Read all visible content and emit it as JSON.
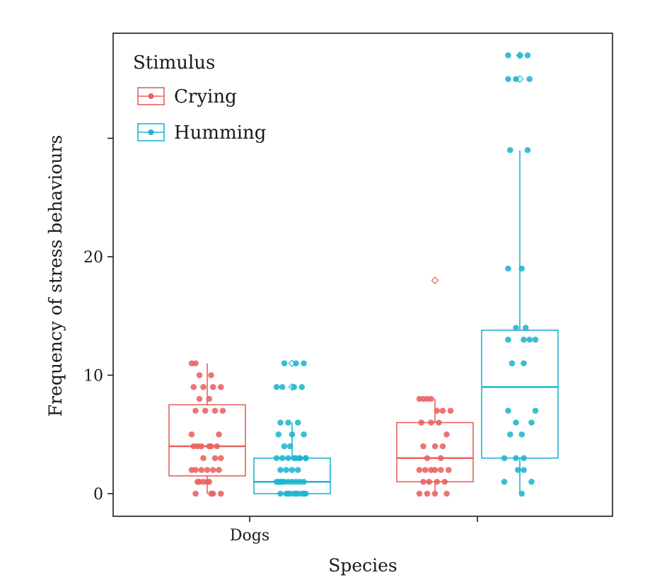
{
  "chart_data": {
    "type": "box",
    "xlabel": "Species",
    "ylabel": "Frequency of stress behaviours",
    "legend_title": "Stimulus",
    "legend_position": "top-left",
    "grid": false,
    "ylim": [
      -2,
      39
    ],
    "y_ticks": [
      0,
      10,
      20,
      30
    ],
    "y_tick_labels": [
      "0",
      "10",
      "20",
      ""
    ],
    "categories": [
      "Dogs",
      ""
    ],
    "series": [
      {
        "name": "Crying",
        "color": "#E8625E",
        "boxes": [
          {
            "category": "Dogs",
            "q1": 1.5,
            "median": 4,
            "q3": 7.5,
            "whisker_low": 0,
            "whisker_high": 11,
            "outliers": []
          },
          {
            "category": "",
            "q1": 1,
            "median": 3,
            "q3": 6,
            "whisker_low": 0,
            "whisker_high": 8,
            "outliers": [
              18
            ]
          }
        ],
        "points": [
          {
            "category": "Dogs",
            "jitter": [
              -0.4,
              -0.3,
              -0.2,
              0.1,
              0.35,
              -0.1,
              0.15,
              -0.35,
              -0.2,
              0.05,
              0.2,
              0.4,
              -0.3,
              -0.05,
              0.3,
              -0.4,
              -0.15,
              0.1,
              0.25,
              -0.25,
              0.05,
              -0.35,
              -0.1,
              0.2,
              0.35,
              -0.3,
              -0.15,
              0.0,
              0.15,
              0.3,
              -0.4,
              -0.25,
              -0.1,
              0.05,
              -0.2,
              0.0,
              0.15,
              0.35,
              -0.3,
              0.1
            ],
            "values": [
              11,
              11,
              10,
              10,
              9,
              9,
              9,
              9,
              8,
              8,
              7,
              7,
              7,
              7,
              5,
              5,
              4,
              4,
              4,
              4,
              4,
              4,
              3,
              3,
              3,
              2,
              2,
              2,
              2,
              2,
              2,
              1,
              1,
              1,
              1,
              1,
              0,
              0,
              0,
              0
            ]
          },
          {
            "category": "",
            "jitter": [
              -0.4,
              -0.3,
              -0.2,
              -0.1,
              0.05,
              0.2,
              0.4,
              -0.35,
              -0.1,
              0.1,
              0.3,
              -0.3,
              0.0,
              0.2,
              -0.2,
              0.15,
              -0.4,
              -0.25,
              -0.1,
              0.0,
              0.15,
              0.35,
              -0.3,
              -0.15,
              0.05,
              0.25,
              -0.4,
              -0.2,
              0.0,
              0.3
            ],
            "values": [
              8,
              8,
              8,
              8,
              7,
              7,
              7,
              6,
              6,
              6,
              5,
              4,
              4,
              4,
              3,
              3,
              2,
              2,
              2,
              2,
              2,
              2,
              1,
              1,
              1,
              1,
              0,
              0,
              0,
              0
            ]
          }
        ]
      },
      {
        "name": "Humming",
        "color": "#1EB5CE",
        "boxes": [
          {
            "category": "Dogs",
            "q1": 0,
            "median": 1,
            "q3": 3,
            "whisker_low": 0,
            "whisker_high": 6,
            "outliers": [
              9,
              11
            ]
          },
          {
            "category": "",
            "q1": 3,
            "median": 9,
            "q3": 13.8,
            "whisker_low": 0,
            "whisker_high": 29,
            "outliers": [
              35,
              37
            ]
          }
        ],
        "points": [
          {
            "category": "Dogs",
            "jitter": [
              -0.2,
              0.1,
              0.3,
              -0.4,
              -0.25,
              0.05,
              0.25,
              -0.1,
              0.15,
              -0.3,
              0.0,
              0.3,
              -0.35,
              -0.2,
              -0.05,
              0.1,
              0.2,
              0.35,
              -0.4,
              -0.25,
              -0.1,
              0.05,
              0.2,
              0.35,
              -0.3,
              -0.15,
              0.0,
              0.15,
              -0.4,
              -0.3,
              -0.2,
              -0.1,
              0.0,
              0.1,
              0.2,
              0.3,
              -0.35,
              -0.25,
              -0.15,
              -0.05,
              0.05,
              0.15,
              0.25,
              0.35,
              -0.3,
              -0.1,
              0.1,
              0.3
            ],
            "values": [
              11,
              11,
              11,
              9,
              9,
              9,
              9,
              6,
              6,
              6,
              5,
              5,
              5,
              4,
              4,
              3,
              3,
              3,
              3,
              3,
              3,
              3,
              3,
              3,
              2,
              2,
              2,
              2,
              1,
              1,
              1,
              1,
              1,
              1,
              1,
              1,
              1,
              1,
              0,
              0,
              0,
              0,
              0,
              0,
              0,
              0,
              0,
              0
            ]
          },
          {
            "category": "",
            "jitter": [
              -0.3,
              0.0,
              0.2,
              -0.3,
              -0.1,
              0.25,
              -0.25,
              0.2,
              -0.3,
              0.05,
              -0.1,
              0.15,
              0.25,
              0.4,
              -0.3,
              0.1,
              -0.2,
              0.1,
              0.4,
              -0.3,
              -0.1,
              0.3,
              -0.25,
              0.05,
              -0.4,
              -0.1,
              0.1,
              -0.05,
              0.1,
              0.3,
              -0.4,
              0.05
            ],
            "values": [
              37,
              37,
              37,
              35,
              35,
              35,
              29,
              29,
              19,
              19,
              14,
              14,
              13,
              13,
              13,
              13,
              11,
              11,
              7,
              7,
              6,
              6,
              5,
              5,
              3,
              3,
              3,
              2,
              2,
              1,
              1,
              0
            ]
          }
        ]
      }
    ]
  }
}
